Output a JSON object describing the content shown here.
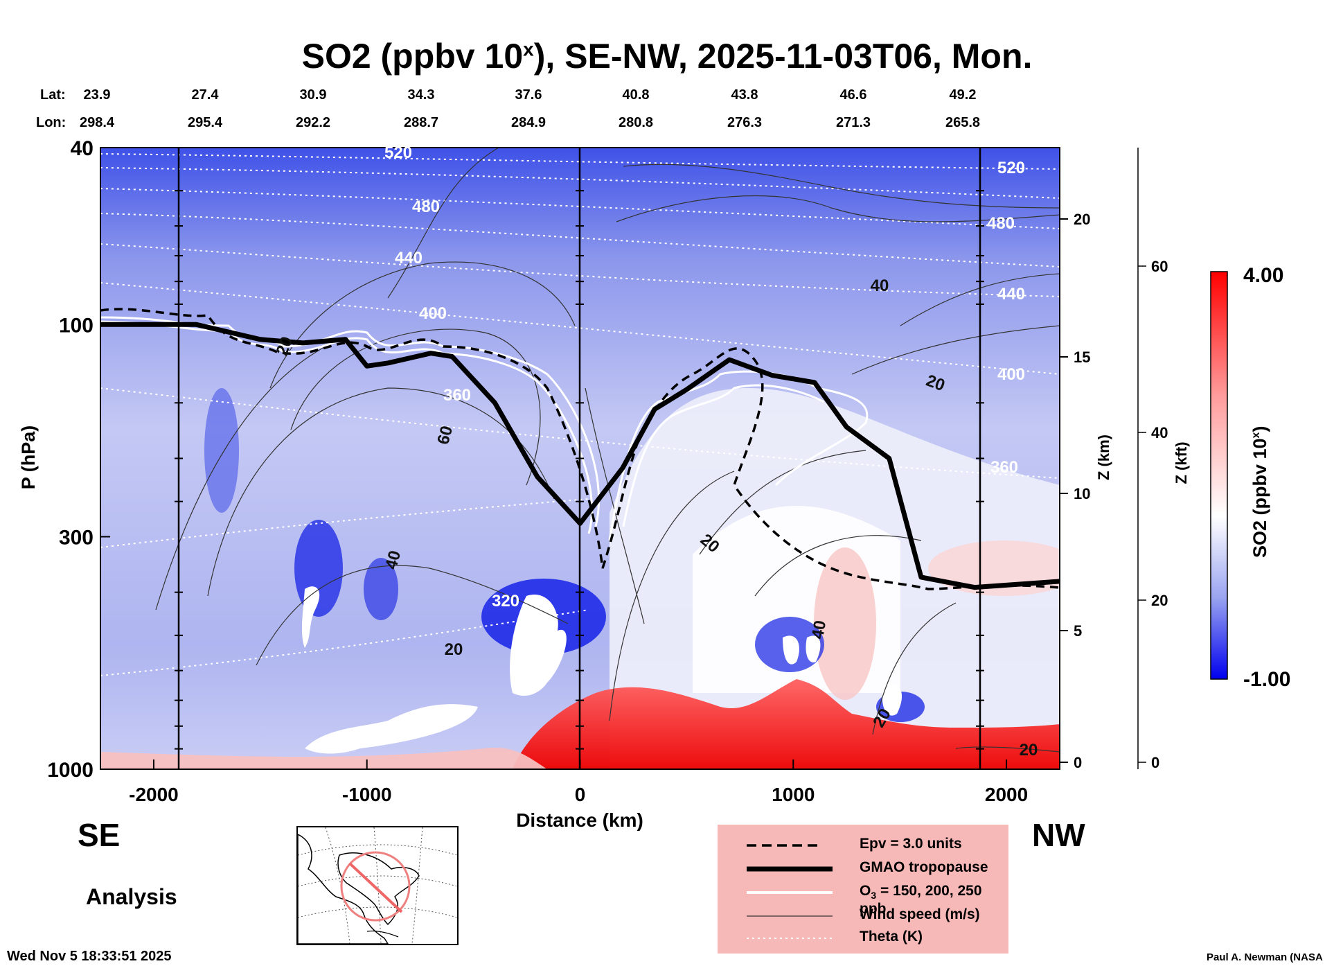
{
  "chart_data": {
    "type": "heatmap",
    "title": "SO2 (ppbv 10",
    "title_exponent": "x",
    "title_rest": "), SE-NW, 2025-11-03T06, Mon.",
    "xlabel": "Distance (km)",
    "ylabel": "P (hPa)",
    "ylabel_right_km": "Z (km)",
    "ylabel_right_kft": "Z (kft)",
    "x_ticks": [
      "-2000",
      "-1000",
      "0",
      "1000",
      "2000"
    ],
    "x_tick_values": [
      -2000,
      -1000,
      0,
      1000,
      2000
    ],
    "xlim": [
      -2250,
      2250
    ],
    "y_ticks": [
      "40",
      "100",
      "300",
      "1000"
    ],
    "y_tick_values": [
      40,
      100,
      300,
      1000
    ],
    "ylim": [
      1000,
      40
    ],
    "z_km_ticks": [
      "0",
      "5",
      "10",
      "15",
      "20"
    ],
    "z_kft_ticks": [
      "0",
      "20",
      "40",
      "60"
    ],
    "lat_label": "Lat:",
    "lon_label": "Lon:",
    "lat": [
      "23.9",
      "27.4",
      "30.9",
      "34.3",
      "37.6",
      "40.8",
      "43.8",
      "46.6",
      "49.2"
    ],
    "lon": [
      "298.4",
      "295.4",
      "292.2",
      "288.7",
      "284.9",
      "280.8",
      "276.3",
      "271.3",
      "265.8"
    ],
    "colorbar": {
      "label": "SO2 (ppbv 10",
      "label_exponent": "x",
      "label_rest": ")",
      "max_label": "4.00",
      "min_label": "-1.00",
      "max": 4.0,
      "min": -1.0,
      "colors": [
        "#0000ee",
        "#ffffff",
        "#ff0000"
      ]
    },
    "theta_labels": [
      "520",
      "480",
      "440",
      "400",
      "360",
      "320",
      "520",
      "480",
      "440",
      "400",
      "360"
    ],
    "wind_labels": [
      "20",
      "60",
      "40",
      "20",
      "20",
      "40",
      "20",
      "40",
      "20",
      "20"
    ],
    "tropopause_profile": {
      "distance_km": [
        -2250,
        -2000,
        -1800,
        -1500,
        -1300,
        -1100,
        -1000,
        -900,
        -700,
        -600,
        -400,
        -200,
        0,
        200,
        350,
        500,
        700,
        900,
        1100,
        1250,
        1450,
        1600,
        1850,
        2250
      ],
      "pressure_hpa": [
        100,
        100,
        100,
        108,
        110,
        108,
        124,
        122,
        116,
        118,
        150,
        220,
        280,
        210,
        155,
        140,
        120,
        130,
        135,
        170,
        200,
        370,
        390,
        378
      ]
    }
  },
  "legend": {
    "epv": "Epv = 3.0 units",
    "tropopause": "GMAO tropopause",
    "ozone_pre": "O",
    "ozone_sub": "3",
    "ozone_post": " = 150, 200, 250 ppb",
    "wind": "Wind speed (m/s)",
    "theta": "Theta (K)"
  },
  "labels": {
    "se": "SE",
    "nw": "NW",
    "analysis": "Analysis",
    "timestamp": "Wed Nov  5 18:33:51 2025",
    "credit": "Paul A. Newman (NASA"
  }
}
